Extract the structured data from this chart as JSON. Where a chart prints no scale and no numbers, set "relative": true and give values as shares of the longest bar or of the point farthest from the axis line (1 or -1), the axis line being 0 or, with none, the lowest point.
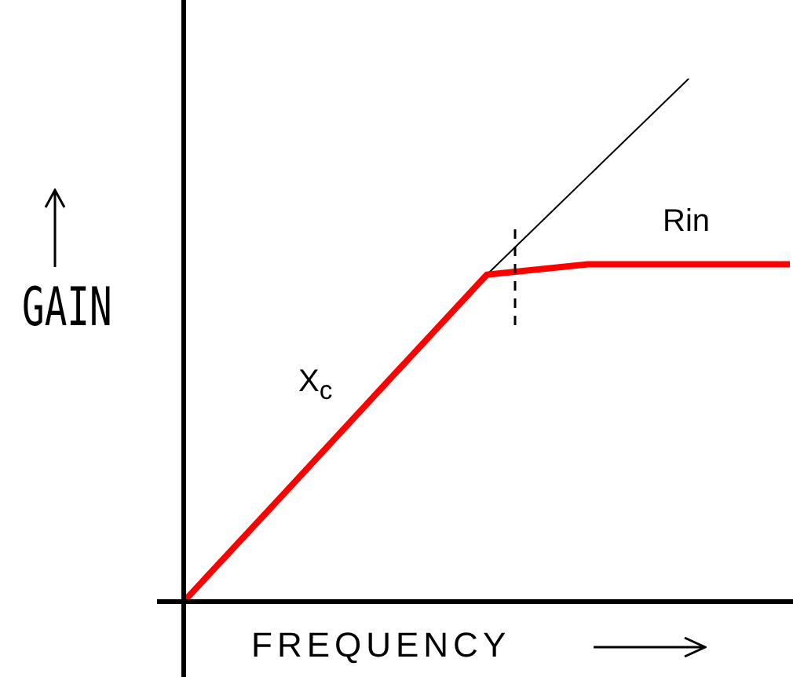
{
  "chart_data": {
    "type": "line",
    "relative": true,
    "xlabel": "FREQUENCY",
    "ylabel": "GAIN",
    "categories": [
      null,
      null,
      null,
      null,
      null,
      null,
      null
    ],
    "series": [
      {
        "color": "#ff0000",
        "values": [
          0,
          0.208,
          0.417,
          0.625,
          0.645,
          0.645,
          0.645
        ]
      },
      {
        "color": "#000000",
        "values": [
          null,
          null,
          null,
          0.625,
          0.8125,
          1,
          null
        ]
      }
    ],
    "annotations": [
      "X$_{c}$",
      "Rin"
    ],
    "legend": false,
    "tick_labels": false,
    "marker": "none",
    "line_style": "solid"
  }
}
